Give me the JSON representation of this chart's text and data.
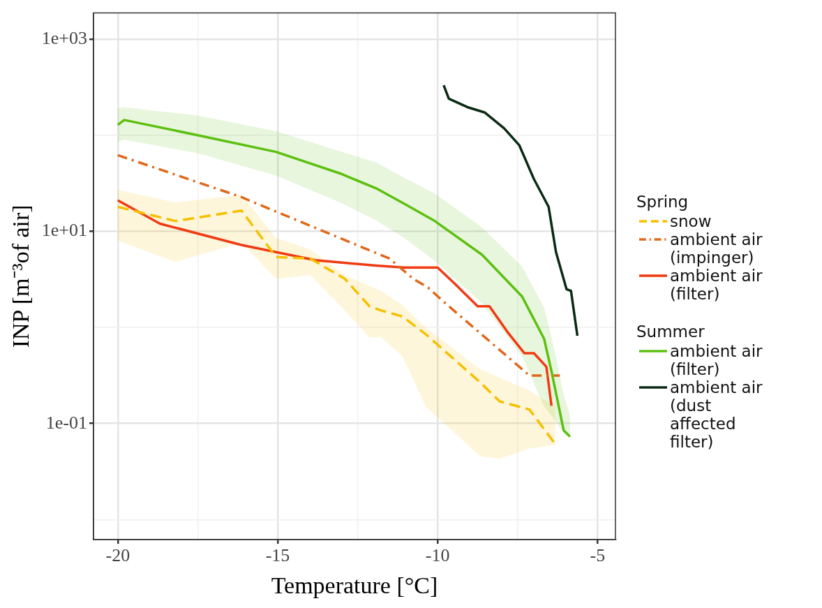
{
  "chart_data": {
    "type": "line",
    "xlabel": "Temperature [°C]",
    "ylabel": "INP [m⁻³of air]",
    "legend_title": [
      "Spring",
      "Summer"
    ],
    "log": "y",
    "grid": true,
    "legend": "right",
    "marker": "none",
    "xlim": [
      -20.76,
      -4.44
    ],
    "xticks": [
      -20,
      {
        "value": -17.5,
        "label": null
      },
      -15,
      {
        "value": -12.5,
        "label": null
      },
      -10,
      {
        "value": -7.5,
        "label": null
      },
      -5
    ],
    "ylim": [
      0.0062,
      1870
    ],
    "yticks": [
      {
        "value": 0.01,
        "label": null
      },
      {
        "value": 0.1,
        "label": "1e-01"
      },
      {
        "value": 1,
        "label": null
      },
      {
        "value": 10,
        "label": "1e+01"
      },
      {
        "value": 100,
        "label": null
      },
      {
        "value": 1000,
        "label": "1e+03"
      }
    ],
    "series": [
      {
        "name": "snow",
        "color": "#f5c000",
        "line_style": "dashed",
        "x": [
          -20,
          -18.2,
          -16.13,
          -15.05,
          -13.98,
          -12.9,
          -12.13,
          -11.76,
          -11.1,
          -10.37,
          -8.68,
          -8.06,
          -7.13,
          -6.32
        ],
        "values": [
          18,
          12.8,
          16.4,
          5.4,
          5.2,
          3.2,
          1.66,
          1.5,
          1.3,
          0.85,
          0.27,
          0.17,
          0.14,
          0.061
        ],
        "upper": [
          27,
          20,
          24,
          8.5,
          6.5,
          3.5,
          2.7,
          2.4,
          1.7,
          1.0,
          0.37,
          0.3,
          0.22,
          0.15
        ],
        "lower": [
          8,
          4.8,
          7.6,
          3.2,
          3.5,
          1.5,
          0.79,
          0.79,
          0.5,
          0.15,
          0.046,
          0.043,
          0.055,
          0.06
        ]
      },
      {
        "name": "ambient air (impinger)",
        "color": "#e0681a",
        "line_style": "dashdot",
        "x": [
          -20,
          -16.13,
          -15.9,
          -13.05,
          -11.5,
          -10.76,
          -10.3,
          -9.77,
          -8.52,
          -7.13,
          -6.67,
          -6.18
        ],
        "values": [
          62,
          22.7,
          21,
          8.5,
          5.2,
          3.2,
          2.6,
          1.8,
          0.79,
          0.316,
          0.316,
          0.316
        ]
      },
      {
        "name": "ambient air (filter)",
        "color": "#f03a12",
        "line_style": "solid",
        "x": [
          -20,
          -18.68,
          -16.13,
          -13.82,
          -11.92,
          -11.04,
          -10,
          -9.44,
          -8.75,
          -8.38,
          -7.82,
          -7.29,
          -6.99,
          -6.6,
          -6.44
        ],
        "values": [
          21,
          12,
          7.2,
          5.0,
          4.4,
          4.2,
          4.2,
          2.8,
          1.66,
          1.66,
          0.9,
          0.54,
          0.54,
          0.39,
          0.153
        ]
      },
      {
        "name": "ambient air (filter)",
        "color": "#5cc010",
        "line_style": "solid",
        "x": [
          -20,
          -19.8,
          -17.5,
          -15.05,
          -13.05,
          -11.92,
          -11.04,
          -10.12,
          -8.61,
          -7.36,
          -6.67,
          -6.44,
          -6.06,
          -5.86
        ],
        "values": [
          128,
          144,
          100,
          67,
          40,
          28,
          19.3,
          13,
          5.7,
          2.1,
          0.76,
          0.35,
          0.085,
          0.073
        ],
        "lower": [
          85,
          90,
          65,
          38,
          20,
          13,
          8.5,
          5,
          1.8,
          0.5,
          0.15,
          0.12,
          0.08,
          0.073
        ],
        "upper": [
          190,
          195,
          160,
          110,
          68,
          52,
          36,
          25,
          11,
          4.3,
          1.6,
          0.8,
          0.2,
          0.12
        ]
      },
      {
        "name": "ambient air (dust affected filter)",
        "color": "#0a2a12",
        "line_style": "solid",
        "x": [
          -9.81,
          -9.65,
          -9.07,
          -8.52,
          -7.92,
          -7.45,
          -6.99,
          -6.53,
          -6.3,
          -5.97,
          -5.83,
          -5.63
        ],
        "values": [
          331,
          240,
          196,
          172,
          118,
          79,
          35,
          18,
          6.1,
          2.5,
          2.4,
          0.82
        ]
      }
    ]
  }
}
